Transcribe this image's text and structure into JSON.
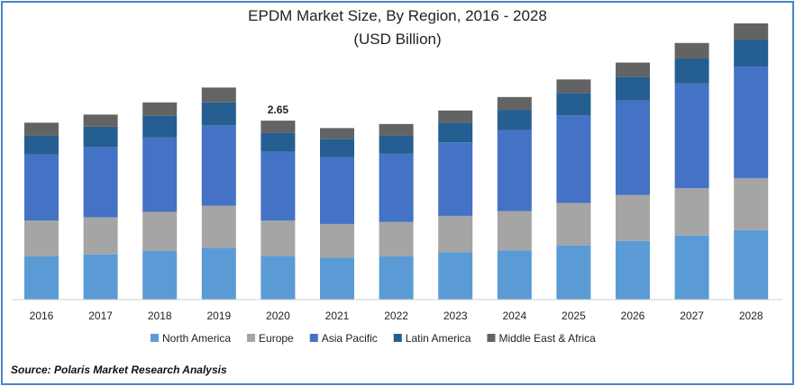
{
  "title_line1": "EPDM Market Size, By Region, 2016 - 2028",
  "title_line2": "(USD Billion)",
  "source": "Source: Polaris  Market Research Analysis",
  "chart_data": {
    "type": "bar",
    "stacked": true,
    "title": "EPDM Market Size, By Region, 2016 - 2028",
    "subtitle": "(USD Billion)",
    "categories": [
      "2016",
      "2017",
      "2018",
      "2019",
      "2020",
      "2021",
      "2022",
      "2023",
      "2024",
      "2025",
      "2026",
      "2027",
      "2028"
    ],
    "series": [
      {
        "name": "North America",
        "color": "#5b9bd5",
        "values": [
          0.64,
          0.67,
          0.72,
          0.77,
          0.65,
          0.62,
          0.64,
          0.7,
          0.73,
          0.8,
          0.87,
          0.95,
          1.03
        ]
      },
      {
        "name": "Europe",
        "color": "#a5a5a5",
        "values": [
          0.53,
          0.55,
          0.58,
          0.62,
          0.52,
          0.5,
          0.51,
          0.54,
          0.58,
          0.63,
          0.68,
          0.7,
          0.77
        ]
      },
      {
        "name": "Asia Pacific",
        "color": "#4472c4",
        "values": [
          0.98,
          1.04,
          1.1,
          1.19,
          1.02,
          0.99,
          1.01,
          1.09,
          1.2,
          1.3,
          1.4,
          1.55,
          1.65
        ]
      },
      {
        "name": "Latin America",
        "color": "#255e91",
        "values": [
          0.28,
          0.3,
          0.32,
          0.34,
          0.28,
          0.27,
          0.27,
          0.29,
          0.3,
          0.33,
          0.35,
          0.37,
          0.4
        ]
      },
      {
        "name": "Middle East & Africa",
        "color": "#636363",
        "values": [
          0.19,
          0.18,
          0.2,
          0.22,
          0.18,
          0.16,
          0.17,
          0.18,
          0.19,
          0.2,
          0.21,
          0.23,
          0.24
        ]
      }
    ],
    "annotations": [
      {
        "category": "2020",
        "text": "2.65"
      }
    ],
    "ylim": [
      0,
      4.25
    ],
    "legend": "bottom",
    "grid": false
  }
}
